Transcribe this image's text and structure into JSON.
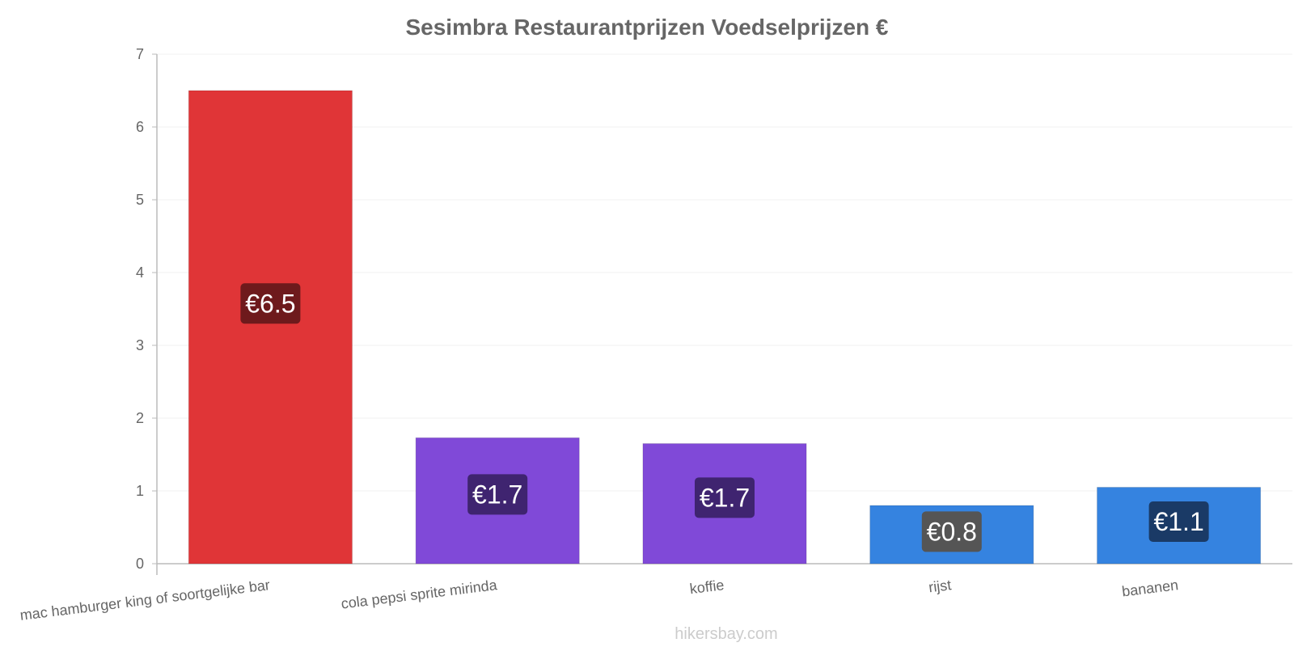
{
  "chart_data": {
    "type": "bar",
    "title": "Sesimbra Restaurantprijzen Voedselprijzen €",
    "categories": [
      "mac hamburger king of soortgelijke bar",
      "cola pepsi sprite mirinda",
      "koffie",
      "rijst",
      "bananen"
    ],
    "values": [
      6.5,
      1.73,
      1.65,
      0.8,
      1.05
    ],
    "value_labels": [
      "€6.5",
      "€1.7",
      "€1.7",
      "€0.8",
      "€1.1"
    ],
    "bar_colors": [
      "#e03537",
      "#8049d8",
      "#8049d8",
      "#3583e0",
      "#3583e0"
    ],
    "label_box_colors": [
      "#6e1a1c",
      "#3f2470",
      "#3f2470",
      "#555555",
      "#1a3a66"
    ],
    "xlabel": "",
    "ylabel": "",
    "ylim": [
      0,
      7
    ],
    "yticks": [
      "0",
      "1",
      "2",
      "3",
      "4",
      "5",
      "6",
      "7"
    ],
    "grid": true,
    "legend": "none"
  },
  "watermark": "hikersbay.com"
}
